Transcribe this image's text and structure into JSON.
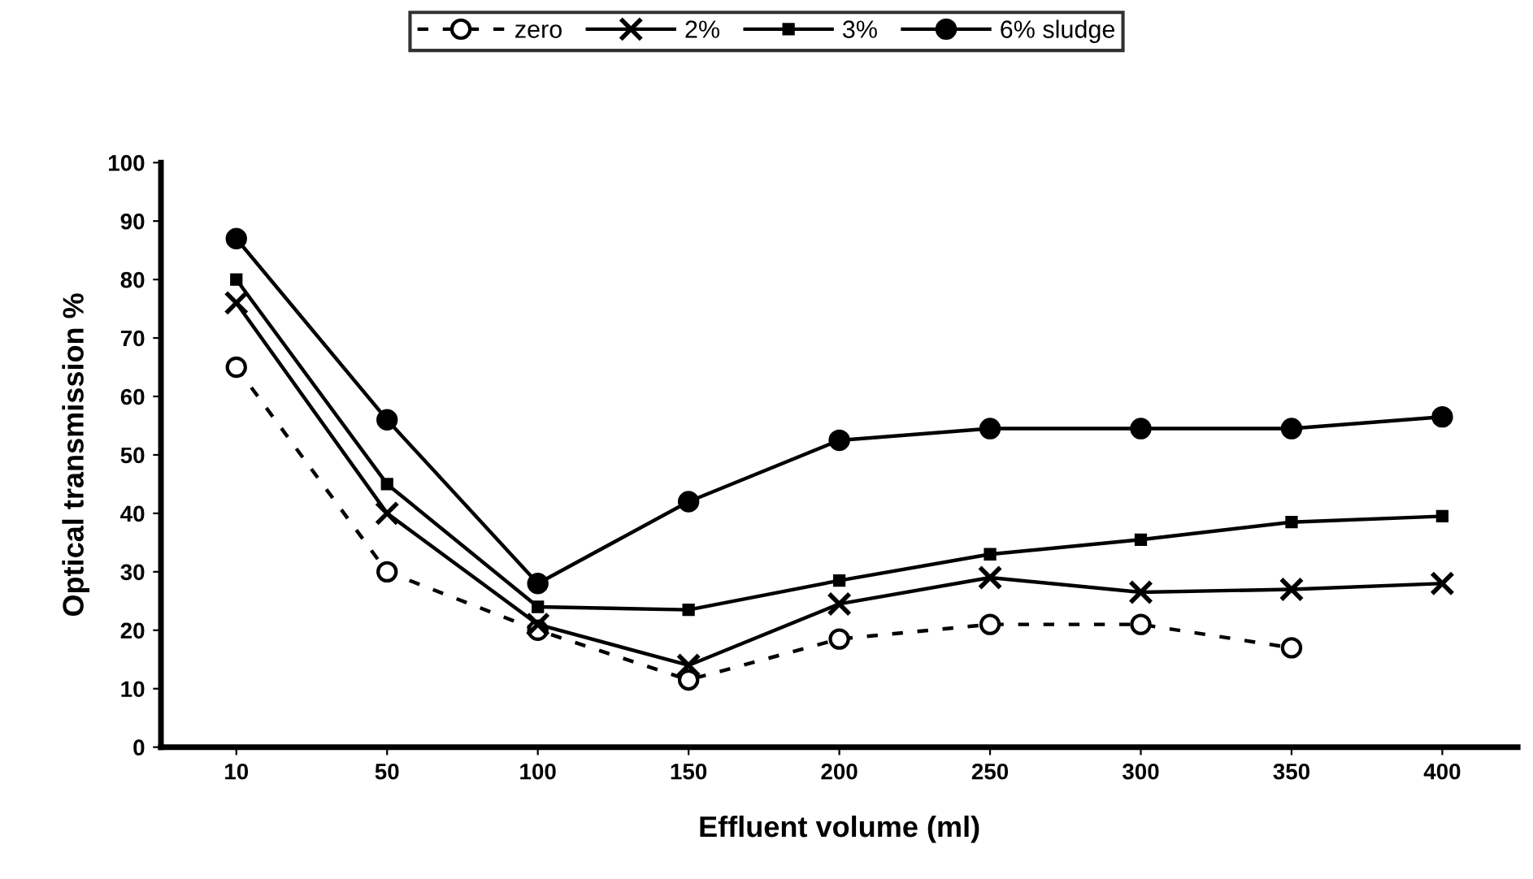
{
  "chart_data": {
    "type": "line",
    "xlabel": "Effluent volume (ml)",
    "ylabel": "Optical transmission %",
    "categories": [
      "10",
      "50",
      "100",
      "150",
      "200",
      "250",
      "300",
      "350",
      "400"
    ],
    "ylim": [
      0,
      100
    ],
    "yticks": [
      0,
      10,
      20,
      30,
      40,
      50,
      60,
      70,
      80,
      90,
      100
    ],
    "grid": false,
    "legend": "top",
    "series": [
      {
        "name": "zero",
        "color": "#000000",
        "marker": "circle",
        "line_style": "dashed",
        "values": [
          65,
          30,
          20,
          11.5,
          18.5,
          21,
          21,
          17,
          null
        ]
      },
      {
        "name": "2%",
        "color": "#000000",
        "marker": "cross",
        "line_style": "solid",
        "values": [
          76,
          40,
          21,
          14,
          24.5,
          29,
          26.5,
          27,
          28
        ]
      },
      {
        "name": "3%",
        "color": "#000000",
        "marker": "square",
        "line_style": "solid",
        "values": [
          80,
          45,
          24,
          23.5,
          28.5,
          33,
          35.5,
          38.5,
          39.5
        ]
      },
      {
        "name": "6% sludge",
        "color": "#000000",
        "marker": "circle",
        "line_style": "solid",
        "values": [
          87,
          56,
          28,
          42,
          52.5,
          54.5,
          54.5,
          54.5,
          56.5
        ]
      }
    ]
  }
}
